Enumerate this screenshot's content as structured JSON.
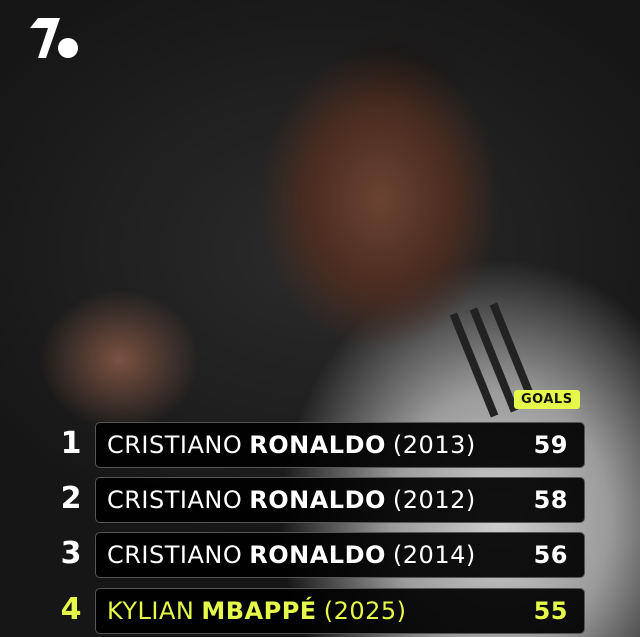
{
  "brand": {
    "logo": "onefootball-logo",
    "accent": "#e6f84a"
  },
  "header": {
    "column_label": "GOALS"
  },
  "rows": [
    {
      "rank": "1",
      "first": "CRISTIANO",
      "last": "RONALDO",
      "year": "(2013)",
      "goals": "59"
    },
    {
      "rank": "2",
      "first": "CRISTIANO",
      "last": "RONALDO",
      "year": "(2012)",
      "goals": "58"
    },
    {
      "rank": "3",
      "first": "CRISTIANO",
      "last": "RONALDO",
      "year": "(2014)",
      "goals": "56"
    },
    {
      "rank": "4",
      "first": "KYLIAN",
      "last": "MBAPPÉ",
      "year": "(2025)",
      "goals": "55",
      "highlight": true
    }
  ]
}
